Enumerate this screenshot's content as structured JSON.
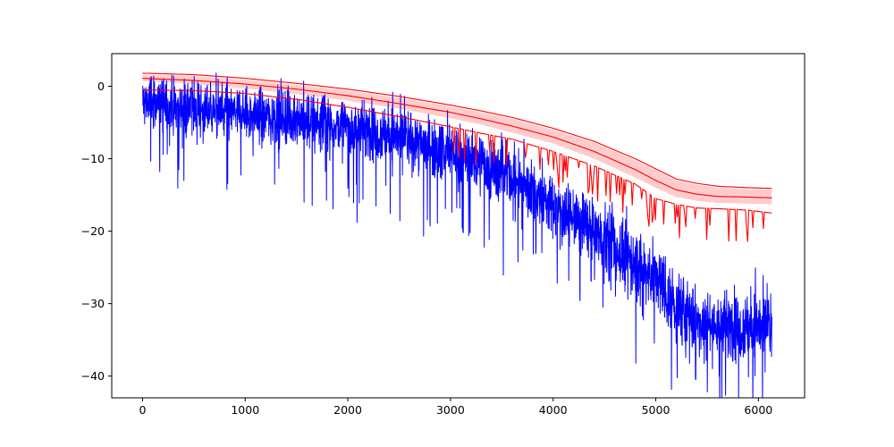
{
  "chart_data": {
    "type": "line",
    "title": "",
    "xlabel": "",
    "ylabel": "",
    "xlim": [
      -300,
      6450
    ],
    "ylim": [
      -43,
      4.5
    ],
    "grid": false,
    "legend": "none",
    "x_ticks": [
      0,
      1000,
      2000,
      3000,
      4000,
      5000,
      6000
    ],
    "y_ticks": [
      0,
      -10,
      -20,
      -30,
      -40
    ],
    "colors": {
      "noisy_series": "#0000ff",
      "bound_lines": "#ff0000",
      "band_fill": "#ffcccc",
      "axes": "#000000"
    },
    "bands": [
      {
        "x": [
          0,
          500,
          1000,
          1500,
          2000,
          2500,
          3000,
          3300,
          3600,
          4000,
          4400,
          4800,
          5000,
          5200,
          5400,
          5600,
          5900,
          6130
        ],
        "upper": [
          1.6,
          1.4,
          0.9,
          0.2,
          -0.6,
          -1.6,
          -2.8,
          -3.6,
          -4.5,
          -6.0,
          -7.8,
          -10.2,
          -11.6,
          -13.0,
          -13.6,
          -14.0,
          -14.2,
          -14.3
        ],
        "lower": [
          0.7,
          0.3,
          -0.3,
          -1.1,
          -2.0,
          -3.1,
          -4.4,
          -5.3,
          -6.4,
          -7.9,
          -10.0,
          -12.6,
          -14.0,
          -15.3,
          -15.8,
          -16.1,
          -16.2,
          -16.3
        ]
      }
    ],
    "series": [
      {
        "style": "upper bound line",
        "x": [
          0,
          500,
          1000,
          1500,
          2000,
          2500,
          3000,
          3300,
          3600,
          4000,
          4400,
          4800,
          5000,
          5200,
          5400,
          5600,
          5900,
          6130
        ],
        "values": [
          1.8,
          1.6,
          1.1,
          0.4,
          -0.4,
          -1.4,
          -2.6,
          -3.4,
          -4.3,
          -5.8,
          -7.6,
          -10.0,
          -11.4,
          -12.8,
          -13.4,
          -13.8,
          -14.0,
          -14.1
        ]
      },
      {
        "style": "middle line",
        "x": [
          0,
          500,
          1000,
          1500,
          2000,
          2500,
          3000,
          3300,
          3600,
          4000,
          4400,
          4800,
          5000,
          5200,
          5400,
          5600,
          5900,
          6130
        ],
        "values": [
          1.1,
          0.8,
          0.3,
          -0.4,
          -1.3,
          -2.4,
          -3.6,
          -4.5,
          -5.5,
          -7.0,
          -9.0,
          -11.5,
          -13.0,
          -14.3,
          -14.9,
          -15.2,
          -15.3,
          -15.4
        ]
      },
      {
        "style": "lower envelope line",
        "x": [
          0,
          500,
          1000,
          1500,
          2000,
          2500,
          3000,
          3300,
          3600,
          4000,
          4400,
          4800,
          5000,
          5200,
          5400,
          5600,
          5900,
          6130
        ],
        "values": [
          -0.5,
          -0.6,
          -1.0,
          -1.8,
          -2.9,
          -4.2,
          -5.6,
          -6.5,
          -7.3,
          -9.0,
          -11.0,
          -13.5,
          -15.5,
          -16.3,
          -16.8,
          -16.9,
          -17.1,
          -17.5
        ]
      },
      {
        "style": "noisy signal trend",
        "x": [
          0,
          500,
          1000,
          1500,
          2000,
          2500,
          3000,
          3300,
          3600,
          4000,
          4400,
          4800,
          5000,
          5200,
          5400,
          5600,
          5900,
          6130
        ],
        "values": [
          -2.0,
          -3.0,
          -3.8,
          -4.5,
          -5.6,
          -7.0,
          -9.0,
          -10.8,
          -12.5,
          -16.5,
          -20.0,
          -24.5,
          -26.5,
          -30.5,
          -32.5,
          -33.0,
          -33.2,
          -33.3
        ]
      }
    ]
  }
}
